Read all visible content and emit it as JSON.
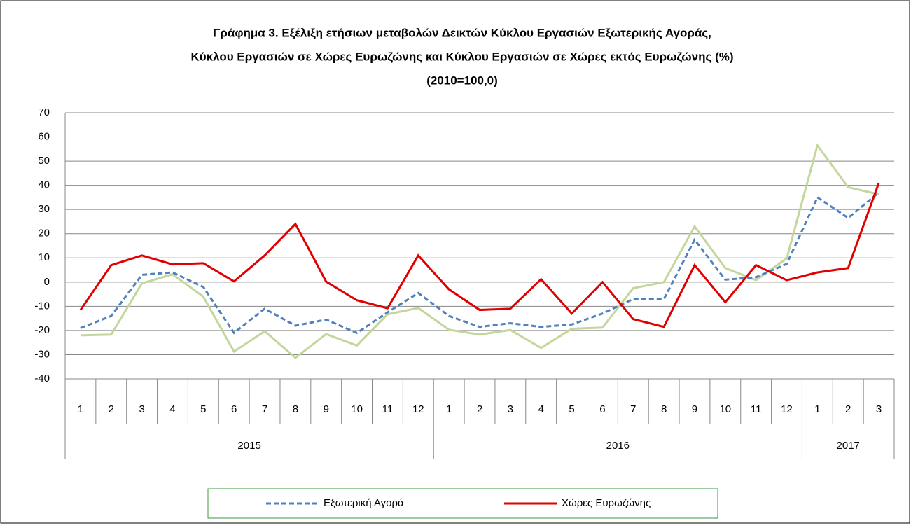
{
  "chart_data": {
    "type": "line",
    "title": [
      "Γράφημα 3. Εξέλιξη  ετήσιων μεταβολών Δεικτών Κύκλου Εργασιών Εξωτερικής Αγοράς,",
      "Κύκλου Εργασιών σε Χώρες Ευρωζώνης και Κύκλου Εργασιών σε Χώρες εκτός Ευρωζώνης (%)",
      "(2010=100,0)"
    ],
    "categories": [
      "1",
      "2",
      "3",
      "4",
      "5",
      "6",
      "7",
      "8",
      "9",
      "10",
      "11",
      "12",
      "1",
      "2",
      "3",
      "4",
      "5",
      "6",
      "7",
      "8",
      "9",
      "10",
      "11",
      "12",
      "1",
      "2",
      "3"
    ],
    "groups": [
      {
        "label": "2015",
        "count": 12
      },
      {
        "label": "2016",
        "count": 12
      },
      {
        "label": "2017",
        "count": 3
      }
    ],
    "series": [
      {
        "name": "Εξωτερική Αγορά",
        "color": "#4f81bd",
        "dashed": true,
        "values": [
          -19,
          -14,
          3,
          4,
          -2,
          -21,
          -11,
          -18,
          -15.5,
          -21,
          -12.5,
          -4.5,
          -14,
          -18.5,
          -17,
          -18.5,
          -17.5,
          -13,
          -7,
          -7,
          17.5,
          1,
          2,
          7.5,
          35,
          26.5,
          37
        ]
      },
      {
        "name": "Χώρες Ευρωζώνης",
        "color": "#e00000",
        "dashed": false,
        "values": [
          -11.5,
          7,
          11,
          7.3,
          7.8,
          0.3,
          11,
          24,
          0.2,
          -7.5,
          -10.8,
          11,
          -3,
          -11.5,
          -11,
          1.2,
          -13,
          0,
          -15.3,
          -18.5,
          7,
          -8.3,
          7,
          0.8,
          4,
          5.8,
          41
        ]
      },
      {
        "color": "#c3d69b",
        "dashed": false,
        "values": [
          -22,
          -21.7,
          -0.5,
          3.2,
          -6,
          -28.7,
          -20.3,
          -31.3,
          -21.5,
          -26.2,
          -13.3,
          -10.7,
          -19.7,
          -21.7,
          -19.8,
          -27.2,
          -19.3,
          -18.8,
          -2.5,
          0,
          23,
          5.8,
          0.8,
          9.8,
          56.5,
          39.2,
          36.3
        ]
      }
    ],
    "ylim": [
      -40,
      70
    ],
    "yticks": [
      -40,
      -30,
      -20,
      -10,
      0,
      10,
      20,
      30,
      40,
      50,
      60,
      70
    ],
    "grid": true,
    "legend": "bottom"
  }
}
